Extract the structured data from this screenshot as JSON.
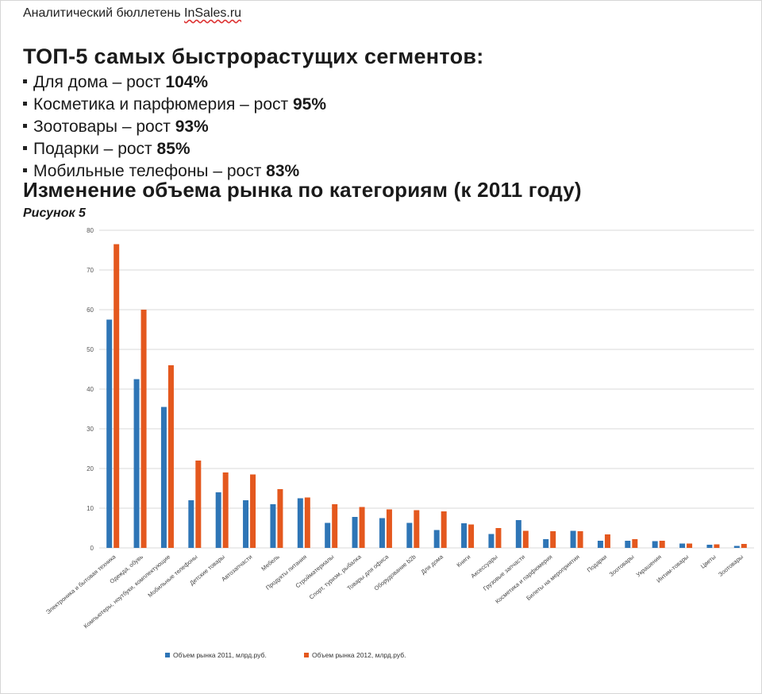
{
  "header": {
    "bulletin_prefix": "Аналитический бюллетень ",
    "bulletin_brand": "InSales.ru"
  },
  "top5": {
    "headline": "ТОП-5 самых быстрорастущих сегментов:",
    "items": [
      {
        "text": "Для дома – рост ",
        "value": "104%"
      },
      {
        "text": "Косметика и парфюмерия – рост ",
        "value": "95%"
      },
      {
        "text": "Зоотовары – рост ",
        "value": "93%"
      },
      {
        "text": "Подарки – рост ",
        "value": "85%"
      },
      {
        "text": "Мобильные телефоны – рост ",
        "value": "83%"
      }
    ]
  },
  "chart_section": {
    "title": "Изменение объема рынка по категориям (к 2011 году)",
    "figure_label": "Рисунок 5"
  },
  "colors": {
    "series_2011": "#2e75b6",
    "series_2012": "#e4581e",
    "grid": "#d9d9d9"
  },
  "chart_data": {
    "type": "bar",
    "title": "Изменение объема рынка по категориям (к 2011 году)",
    "xlabel": "",
    "ylabel": "",
    "ylim": [
      0,
      80
    ],
    "yticks": [
      0,
      10,
      20,
      30,
      40,
      50,
      60,
      70,
      80
    ],
    "grid": true,
    "legend_position": "bottom",
    "categories": [
      "Электроника и бытовая техника",
      "Одежда, обувь",
      "Компьютеры, ноутбуки, комплектующие",
      "Мобильные телефоны",
      "Детские товары",
      "Автозапчасти",
      "Мебель",
      "Продукты питания",
      "Стройматериалы",
      "Спорт, туризм, рыбалка",
      "Товары для офиса",
      "Оборудование b2b",
      "Для дома",
      "Книги",
      "Аксессуары",
      "Грузовые запчасти",
      "Косметика и парфюмерия",
      "Билеты на мероприятия",
      "Подарки",
      "Зоотовары",
      "Украшения",
      "Интим-товары",
      "Цветы",
      "Зоотовары"
    ],
    "series": [
      {
        "name": "Объем рынка 2011, млрд.руб.",
        "values": [
          57.5,
          42.5,
          35.5,
          12,
          14,
          12,
          11,
          12.5,
          6.3,
          7.8,
          7.5,
          6.3,
          4.5,
          6.2,
          3.5,
          7,
          2.2,
          4.3,
          1.8,
          1.8,
          1.7,
          1.1,
          0.8,
          0.5
        ]
      },
      {
        "name": "Объем рынка 2012, млрд.руб.",
        "values": [
          76.5,
          60,
          46,
          22,
          19,
          18.5,
          14.8,
          12.7,
          11,
          10.3,
          9.7,
          9.5,
          9.2,
          5.9,
          5,
          4.3,
          4.2,
          4.2,
          3.4,
          2.2,
          1.8,
          1.1,
          0.9,
          1
        ]
      }
    ]
  }
}
